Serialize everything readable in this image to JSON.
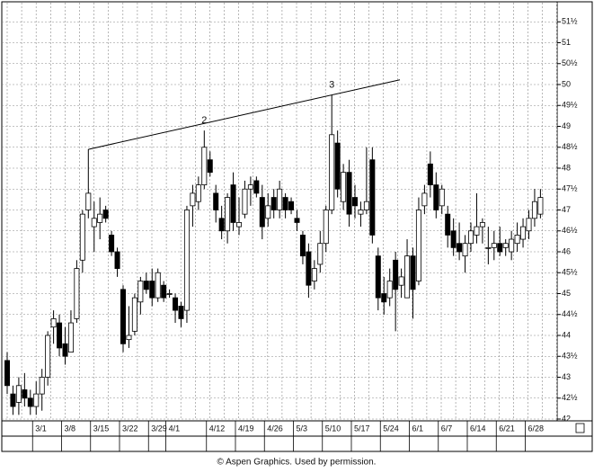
{
  "chart_data": {
    "type": "candlestick",
    "categories": [
      null,
      null,
      null,
      null,
      null,
      "3/1",
      null,
      null,
      null,
      null,
      "3/8",
      null,
      null,
      null,
      null,
      "3/15",
      null,
      null,
      null,
      null,
      "3/22",
      null,
      null,
      null,
      null,
      "3/29",
      null,
      null,
      "4/1",
      null,
      null,
      null,
      null,
      null,
      null,
      "4/12",
      null,
      null,
      null,
      null,
      "4/19",
      null,
      null,
      null,
      null,
      "4/26",
      null,
      null,
      null,
      null,
      "5/3",
      null,
      null,
      null,
      null,
      "5/10",
      null,
      null,
      null,
      null,
      "5/17",
      null,
      null,
      null,
      null,
      "5/24",
      null,
      null,
      null,
      null,
      "6/1",
      null,
      null,
      null,
      null,
      "6/7",
      null,
      null,
      null,
      null,
      "6/14",
      null,
      null,
      null,
      null,
      "6/21",
      null,
      null,
      null,
      null,
      "6/28",
      null,
      null
    ],
    "open": [
      43.4,
      42.6,
      42.4,
      42.7,
      42.5,
      42.3,
      42.6,
      43.0,
      44.2,
      44.3,
      43.8,
      43.6,
      44.4,
      45.8,
      47.0,
      46.6,
      46.7,
      47.0,
      46.4,
      46.0,
      45.1,
      43.9,
      44.1,
      44.8,
      45.3,
      45.3,
      44.9,
      45.2,
      45.0,
      44.9,
      44.7,
      44.6,
      47.1,
      47.2,
      47.6,
      48.2,
      47.4,
      46.8,
      46.5,
      47.6,
      46.6,
      46.9,
      47.5,
      47.7,
      47.3,
      46.8,
      47.3,
      47.0,
      47.3,
      47.2,
      46.8,
      46.4,
      46.0,
      45.3,
      45.7,
      46.2,
      47.0,
      48.6,
      47.2,
      47.9,
      47.3,
      46.9,
      47.0,
      48.2,
      45.9,
      45.0,
      44.9,
      45.8,
      45.2,
      44.9,
      45.9,
      45.3,
      47.1,
      48.1,
      47.6,
      47.1,
      46.9,
      46.5,
      46.2,
      45.9,
      46.2,
      46.4,
      46.6,
      46.1,
      46.1,
      46.2,
      46.1,
      46.0,
      46.2,
      46.3,
      46.5,
      46.8,
      46.9
    ],
    "high": [
      43.6,
      42.8,
      43.0,
      43.1,
      42.7,
      42.9,
      43.2,
      44.1,
      44.6,
      44.5,
      44.2,
      44.6,
      45.8,
      47.0,
      48.45,
      47.2,
      47.3,
      47.1,
      46.5,
      46.1,
      45.2,
      44.7,
      45.0,
      45.4,
      45.5,
      45.6,
      45.6,
      45.3,
      45.1,
      45.0,
      44.8,
      47.1,
      47.6,
      47.8,
      48.9,
      48.4,
      47.6,
      47.1,
      47.4,
      47.9,
      47.3,
      47.7,
      47.8,
      47.8,
      47.6,
      47.4,
      47.5,
      47.7,
      47.4,
      47.3,
      47.0,
      46.5,
      46.2,
      45.8,
      46.5,
      47.1,
      49.75,
      48.9,
      48.1,
      48.2,
      47.6,
      47.2,
      48.5,
      48.5,
      46.1,
      45.4,
      45.6,
      46.0,
      45.6,
      46.3,
      46.1,
      47.3,
      47.6,
      48.4,
      47.9,
      47.6,
      47.1,
      46.8,
      46.7,
      46.4,
      46.7,
      47.4,
      46.8,
      46.6,
      46.5,
      46.6,
      46.3,
      46.5,
      46.7,
      46.8,
      47.0,
      47.5,
      47.5
    ],
    "low": [
      42.6,
      42.1,
      42.1,
      42.3,
      42.1,
      42.1,
      42.2,
      42.8,
      43.8,
      43.5,
      43.3,
      43.6,
      44.3,
      45.5,
      46.8,
      46.0,
      46.3,
      46.7,
      45.9,
      45.4,
      43.6,
      43.7,
      44.0,
      44.5,
      45.0,
      44.7,
      44.8,
      44.8,
      44.9,
      44.3,
      44.2,
      44.3,
      46.6,
      47.0,
      47.5,
      47.8,
      46.7,
      46.3,
      46.2,
      46.5,
      46.4,
      46.8,
      47.1,
      47.3,
      46.3,
      46.6,
      46.8,
      46.8,
      46.8,
      46.9,
      46.5,
      45.7,
      44.9,
      45.1,
      45.5,
      46.0,
      46.9,
      47.3,
      47.0,
      46.6,
      46.8,
      46.6,
      46.9,
      46.2,
      44.6,
      44.5,
      44.7,
      44.1,
      44.9,
      44.9,
      44.4,
      45.2,
      46.9,
      47.3,
      46.8,
      46.9,
      46.1,
      45.9,
      45.8,
      45.5,
      46.0,
      46.2,
      46.2,
      45.7,
      45.8,
      45.9,
      45.9,
      45.8,
      46.0,
      46.1,
      46.3,
      46.6,
      46.8
    ],
    "close": [
      42.8,
      42.3,
      42.8,
      42.5,
      42.3,
      42.6,
      43.0,
      44.0,
      44.4,
      43.7,
      43.5,
      44.3,
      45.6,
      46.9,
      47.4,
      46.8,
      46.9,
      46.8,
      46.0,
      45.6,
      43.8,
      44.0,
      44.9,
      45.3,
      45.1,
      44.9,
      45.5,
      44.9,
      45.0,
      44.6,
      44.4,
      47.0,
      47.4,
      47.6,
      48.5,
      47.9,
      47.0,
      46.5,
      47.3,
      46.7,
      46.7,
      47.5,
      47.6,
      47.4,
      46.6,
      47.1,
      47.0,
      47.5,
      47.0,
      47.0,
      46.7,
      45.9,
      45.2,
      45.6,
      46.2,
      47.0,
      48.8,
      47.5,
      47.9,
      46.9,
      47.1,
      47.0,
      47.2,
      46.4,
      44.9,
      44.8,
      45.3,
      45.1,
      45.4,
      45.9,
      45.1,
      47.0,
      47.4,
      47.6,
      47.0,
      47.5,
      46.4,
      46.1,
      46.0,
      46.2,
      46.5,
      46.6,
      46.7,
      46.1,
      46.2,
      46.0,
      46.2,
      46.3,
      46.4,
      46.6,
      46.8,
      47.2,
      47.3
    ],
    "up_fill": "#ffffff",
    "down_fill": "#000000",
    "color": "#000000",
    "ylim": [
      42,
      52
    ],
    "yticks": [
      42,
      {
        "value": 42.5,
        "label": "42½"
      },
      43,
      {
        "value": 43.5,
        "label": "43½"
      },
      44,
      {
        "value": 44.5,
        "label": "44½"
      },
      45,
      {
        "value": 45.5,
        "label": "45½"
      },
      46,
      {
        "value": 46.5,
        "label": "46½"
      },
      47,
      {
        "value": 47.5,
        "label": "47½"
      },
      48,
      {
        "value": 48.5,
        "label": "48½"
      },
      49,
      {
        "value": 49.5,
        "label": "49½"
      },
      50,
      {
        "value": 50.5,
        "label": "50½"
      },
      51,
      {
        "value": 51.5,
        "label": "51½"
      }
    ],
    "grid": true,
    "annotations": [
      {
        "label": "2",
        "index": 34
      },
      {
        "label": "3",
        "index": 56
      }
    ],
    "trendline": [
      14,
      56
    ],
    "credit": "© Aspen Graphics. Used by permission."
  }
}
